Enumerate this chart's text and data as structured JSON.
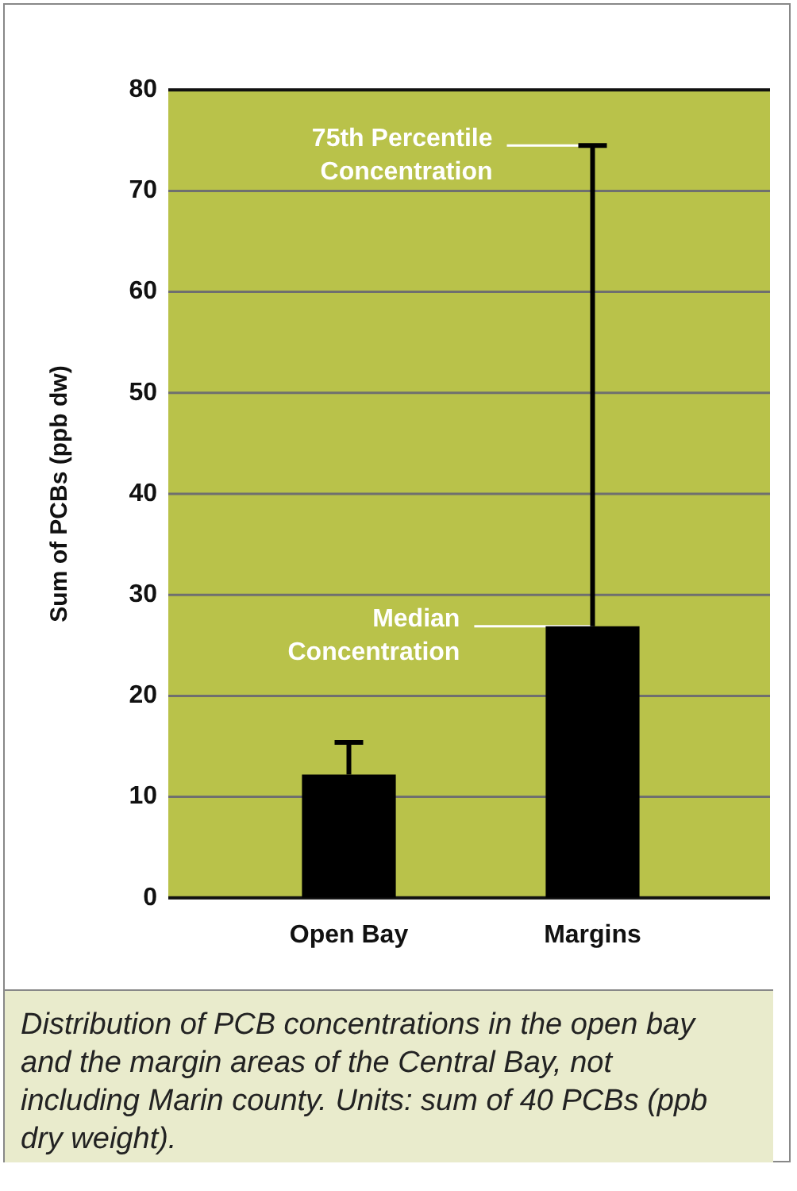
{
  "chart_data": {
    "type": "bar",
    "ylabel": "Sum of PCBs (ppb dw)",
    "categories": [
      "Open Bay",
      "Margins"
    ],
    "values": [
      12.2,
      26.9
    ],
    "color": "#000000",
    "errors": [
      [
        12.2,
        15.4
      ],
      [
        26.9,
        74.5
      ]
    ],
    "ylim": [
      0,
      80
    ],
    "yticks": [
      0,
      10,
      20,
      30,
      40,
      50,
      60,
      70,
      80
    ],
    "grid": "y",
    "legend": false,
    "annotations": [
      {
        "text": "75th Percentile Concentration",
        "x": "Margins",
        "y": 74.5
      },
      {
        "text": "Median Concentration",
        "x": "Margins",
        "y": 26.9
      },
      "Distribution of PCB concentrations in the open bay and the margin areas of the Central Bay, not including Marin county. Units: sum of 40 PCBs (ppb dry weight)."
    ]
  }
}
